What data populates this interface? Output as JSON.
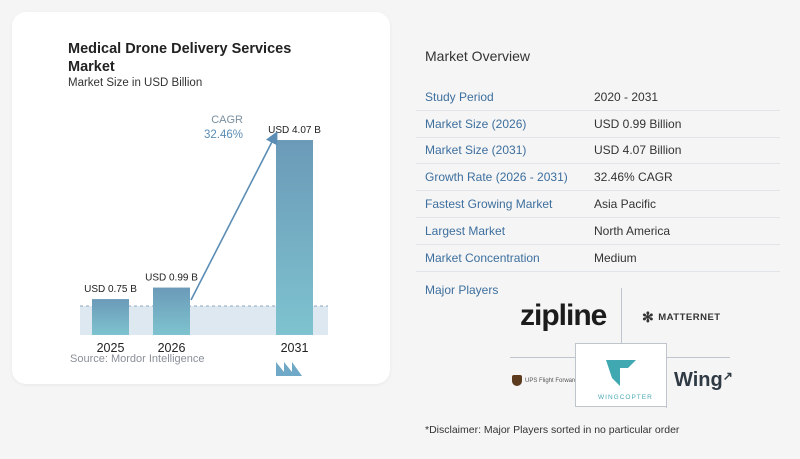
{
  "card": {
    "title": "Medical Drone Delivery Services Market",
    "subtitle": "Market Size in USD Billion",
    "source": "Source: Mordor Intelligence",
    "cagr_label": "CAGR",
    "cagr_value": "32.46%"
  },
  "chart_data": {
    "type": "bar",
    "title": "Medical Drone Delivery Services Market",
    "subtitle": "Market Size in USD Billion",
    "categories": [
      "2025",
      "2026",
      "2031"
    ],
    "values": [
      0.75,
      0.99,
      4.07
    ],
    "data_labels": [
      "USD 0.75 B",
      "USD 0.99 B",
      "USD 4.07 B"
    ],
    "ylim": [
      0,
      4.3
    ],
    "grid": false,
    "annotation": "CAGR 32.46%",
    "colors": {
      "bar_top": "#6b9ab8",
      "bar_bottom": "#7ec3cf",
      "reference_band": "#dde8f0",
      "arrow": "#5b8db5"
    }
  },
  "overview": {
    "title": "Market Overview",
    "rows": [
      {
        "key": "Study Period",
        "value": "2020 - 2031"
      },
      {
        "key": "Market Size (2026)",
        "value": "USD 0.99 Billion"
      },
      {
        "key": "Market Size (2031)",
        "value": "USD 4.07 Billion"
      },
      {
        "key": "Growth Rate (2026 - 2031)",
        "value": "32.46% CAGR"
      },
      {
        "key": "Fastest Growing Market",
        "value": "Asia Pacific"
      },
      {
        "key": "Largest Market",
        "value": "North America"
      },
      {
        "key": "Market Concentration",
        "value": "Medium"
      }
    ],
    "players_label": "Major Players",
    "players": {
      "zipline": "zipline",
      "matternet": "MATTERNET",
      "ups": "UPS Flight Forward",
      "wingcopter": "WINGCOPTER",
      "wing": "Wing"
    },
    "disclaimer": "*Disclaimer: Major Players sorted in no particular order"
  }
}
